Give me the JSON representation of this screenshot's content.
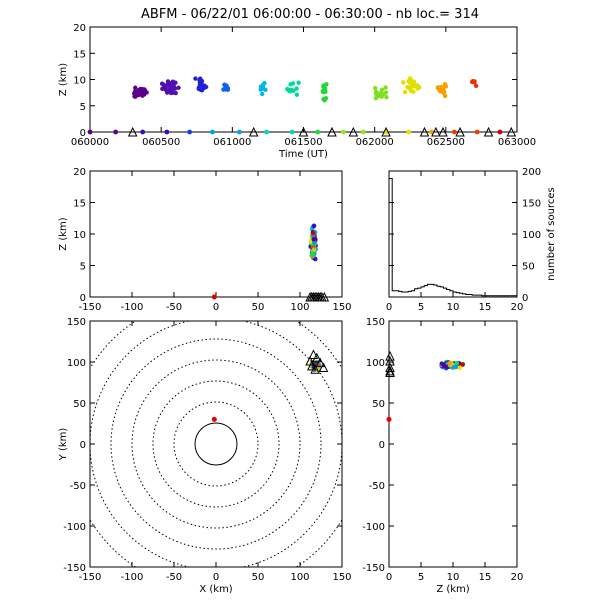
{
  "title": "ABFM - 06/22/01 06:00:00 - 06:30:00 - nb loc.=    314",
  "chart_data": [
    {
      "id": "time-height",
      "type": "scatter",
      "xlabel": "Time (UT)",
      "ylabel": "Z (km)",
      "xlim": [
        60000,
        63000
      ],
      "ylim": [
        0,
        20
      ],
      "xticks": [
        "060000",
        "060500",
        "061000",
        "061500",
        "062000",
        "062500",
        "063000"
      ],
      "yticks": [
        "0",
        "5",
        "10",
        "15",
        "20"
      ],
      "xtick_values": [
        60000,
        60500,
        61000,
        61500,
        62000,
        62500,
        63000
      ],
      "ytick_values": [
        0,
        5,
        10,
        15,
        20
      ],
      "clusters": [
        {
          "t": 60350,
          "z": 7.5,
          "spread_t": 120,
          "spread_z": 1.2,
          "n": 40,
          "color": "#5a008c"
        },
        {
          "t": 60560,
          "z": 8.5,
          "spread_t": 80,
          "spread_z": 1.5,
          "n": 35,
          "color": "#5010b0"
        },
        {
          "t": 60780,
          "z": 9.0,
          "spread_t": 70,
          "spread_z": 1.8,
          "n": 18,
          "color": "#2020d8"
        },
        {
          "t": 60960,
          "z": 8.0,
          "spread_t": 40,
          "spread_z": 1.2,
          "n": 10,
          "color": "#1060f0"
        },
        {
          "t": 61210,
          "z": 8.5,
          "spread_t": 40,
          "spread_z": 1.5,
          "n": 10,
          "color": "#00b8e8"
        },
        {
          "t": 61420,
          "z": 8.5,
          "spread_t": 70,
          "spread_z": 2.0,
          "n": 12,
          "color": "#00d8a0"
        },
        {
          "t": 61650,
          "z": 8.0,
          "spread_t": 40,
          "spread_z": 2.0,
          "n": 10,
          "color": "#20d830"
        },
        {
          "t": 62030,
          "z": 7.5,
          "spread_t": 80,
          "spread_z": 1.5,
          "n": 16,
          "color": "#80e020"
        },
        {
          "t": 62260,
          "z": 9.0,
          "spread_t": 90,
          "spread_z": 2.2,
          "n": 28,
          "color": "#e0e000"
        },
        {
          "t": 62470,
          "z": 8.0,
          "spread_t": 60,
          "spread_z": 2.0,
          "n": 12,
          "color": "#f8a000"
        },
        {
          "t": 62700,
          "z": 9.5,
          "spread_t": 30,
          "spread_z": 0.8,
          "n": 5,
          "color": "#f03000"
        }
      ],
      "ground_points": [
        60000,
        60180,
        60370,
        60540,
        60700,
        60860,
        61050,
        61240,
        61420,
        61600,
        61780,
        61920,
        62080,
        62240,
        62400,
        62560,
        62720,
        62880
      ],
      "triangles": [
        60300,
        61150,
        61500,
        61700,
        61850,
        62080,
        62350,
        62430,
        62480,
        62600,
        62800,
        62960
      ]
    },
    {
      "id": "x-height",
      "type": "scatter",
      "xlabel": "",
      "ylabel": "Z (km)",
      "xlim": [
        -150,
        150
      ],
      "ylim": [
        0,
        20
      ],
      "xticks": [
        "-150",
        "-100",
        "-50",
        "0",
        "50",
        "100",
        "150"
      ],
      "yticks": [
        "0",
        "5",
        "10",
        "15",
        "20"
      ],
      "xtick_values": [
        -150,
        -100,
        -50,
        0,
        50,
        100,
        150
      ],
      "ytick_values": [
        0,
        5,
        10,
        15,
        20
      ],
      "cluster": {
        "x": 116,
        "z": 8.5,
        "spread_x": 4,
        "spread_z": 3.2,
        "n": 90
      },
      "red_point": {
        "x": -2,
        "z": 0
      },
      "triangles": [
        112,
        114,
        116,
        118,
        120,
        122,
        124,
        126,
        129
      ]
    },
    {
      "id": "height-histogram",
      "type": "histogram",
      "xlabel": "",
      "ylabel": "number of sources",
      "xlim": [
        0,
        20
      ],
      "ylim": [
        0,
        200
      ],
      "xticks": [
        "0",
        "5",
        "10",
        "15",
        "20"
      ],
      "yticks": [
        "0",
        "50",
        "100",
        "150",
        "200"
      ],
      "xtick_values": [
        0,
        5,
        10,
        15,
        20
      ],
      "ytick_values": [
        0,
        50,
        100,
        150,
        200
      ],
      "bin_width": 0.5,
      "values": [
        188,
        10,
        10,
        9,
        8,
        8,
        9,
        10,
        13,
        14,
        16,
        18,
        20,
        20,
        19,
        17,
        16,
        14,
        12,
        10,
        8,
        7,
        6,
        5,
        4,
        4,
        3,
        3,
        3,
        2,
        2,
        2,
        2,
        2,
        2,
        2,
        2,
        2,
        2,
        2
      ]
    },
    {
      "id": "plan-view",
      "type": "scatter",
      "xlabel": "X (km)",
      "ylabel": "Y (km)",
      "xlim": [
        -150,
        150
      ],
      "ylim": [
        -150,
        150
      ],
      "xticks": [
        "-150",
        "-100",
        "-50",
        "0",
        "50",
        "100",
        "150"
      ],
      "yticks": [
        "-150",
        "-100",
        "-50",
        "0",
        "50",
        "100",
        "150"
      ],
      "xtick_values": [
        -150,
        -100,
        -50,
        0,
        50,
        100,
        150
      ],
      "ytick_values": [
        -150,
        -100,
        -50,
        0,
        50,
        100,
        150
      ],
      "range_rings_km": [
        25,
        50,
        75,
        100,
        125,
        150,
        175
      ],
      "cluster": {
        "x": 118,
        "y": 96,
        "spread_x": 6,
        "spread_y": 7,
        "n": 80
      },
      "red_point": {
        "x": -2,
        "y": 30
      },
      "triangles": [
        [
          112,
          100
        ],
        [
          116,
          108
        ],
        [
          120,
          104
        ],
        [
          124,
          98
        ],
        [
          128,
          92
        ],
        [
          114,
          94
        ],
        [
          118,
          90
        ]
      ]
    },
    {
      "id": "height-y",
      "type": "scatter",
      "xlabel": "Z (km)",
      "ylabel": "",
      "xlim": [
        0,
        20
      ],
      "ylim": [
        -150,
        150
      ],
      "xticks": [
        "0",
        "5",
        "10",
        "15",
        "20"
      ],
      "yticks": [
        "-150",
        "-100",
        "-50",
        "0",
        "50",
        "100",
        "150"
      ],
      "xtick_values": [
        0,
        5,
        10,
        15,
        20
      ],
      "ytick_values": [
        -150,
        -100,
        -50,
        0,
        50,
        100,
        150
      ],
      "cluster": {
        "z": 9.5,
        "y": 96,
        "spread_z": 2.6,
        "spread_y": 6,
        "n": 90
      },
      "red_point": {
        "z": 0,
        "y": 30
      },
      "triangles": [
        106,
        100,
        92,
        88,
        86
      ]
    }
  ]
}
